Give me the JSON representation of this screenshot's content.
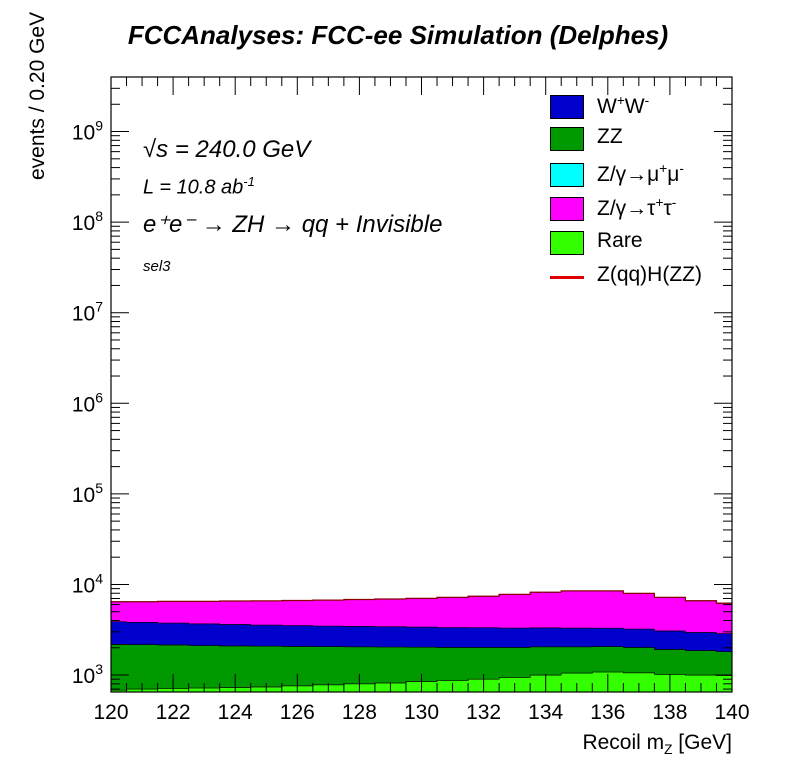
{
  "title": "FCCAnalyses: FCC-ee Simulation (Delphes)",
  "annotations": {
    "sqrt_s_symbol": "√s",
    "sqrt_s_value": "= 240.0 GeV",
    "lumi_prefix": "L = 10.8 ab",
    "lumi_exp": "-1",
    "process": "e⁺e⁻ → ZH → qq + Invisible",
    "selection": "sel3"
  },
  "legend": [
    {
      "key": "ww",
      "label_main": "W",
      "sup1": "+",
      "mid": "W",
      "sup2": "-",
      "color": "#0000cc"
    },
    {
      "key": "zz",
      "label": "ZZ",
      "color": "#009900"
    },
    {
      "key": "zmm",
      "label_main": "Z/γ→μ",
      "sup1": "+",
      "mid": "μ",
      "sup2": "-",
      "color": "#00ffff"
    },
    {
      "key": "ztt",
      "label_main": "Z/γ→τ",
      "sup1": "+",
      "mid": "τ",
      "sup2": "-",
      "color": "#ff00ff"
    },
    {
      "key": "rare",
      "label": "Rare",
      "color": "#33ff00"
    },
    {
      "key": "sig",
      "label": "Z(qq)H(ZZ)",
      "color": "#dd0000",
      "line": true
    }
  ],
  "chart_data": {
    "type": "area",
    "stacked": true,
    "log_y": true,
    "xlabel_main": "Recoil m",
    "xlabel_sub": "Z",
    "xlabel_unit": " [GeV]",
    "ylabel": "events / 0.20 GeV",
    "xlim": [
      120,
      140
    ],
    "ylim": [
      650,
      4000000000
    ],
    "x_ticks": [
      120,
      122,
      124,
      126,
      128,
      130,
      132,
      134,
      136,
      138,
      140
    ],
    "y_ticks": [
      "10³",
      "10⁴",
      "10⁵",
      "10⁶",
      "10⁷",
      "10⁸",
      "10⁹"
    ],
    "y_tick_values": [
      1000,
      10000,
      100000,
      1000000,
      10000000,
      100000000,
      1000000000
    ],
    "x": [
      120,
      121,
      122,
      123,
      124,
      125,
      126,
      127,
      128,
      129,
      130,
      131,
      132,
      133,
      134,
      135,
      136,
      137,
      138,
      139,
      140
    ],
    "series": [
      {
        "name": "Rare",
        "key": "rare",
        "color": "#33ff00",
        "values": [
          680,
          700,
          710,
          720,
          730,
          740,
          760,
          780,
          800,
          820,
          850,
          870,
          900,
          940,
          1000,
          1050,
          1080,
          1060,
          1020,
          1000,
          990
        ]
      },
      {
        "name": "ZZ",
        "key": "zz",
        "color": "#009900",
        "values": [
          1500,
          1470,
          1440,
          1400,
          1370,
          1340,
          1310,
          1280,
          1250,
          1220,
          1180,
          1150,
          1120,
          1080,
          1050,
          1000,
          980,
          960,
          900,
          860,
          820
        ]
      },
      {
        "name": "W⁺W⁻",
        "key": "ww",
        "color": "#0000cc",
        "values": [
          1700,
          1650,
          1600,
          1560,
          1520,
          1480,
          1450,
          1420,
          1400,
          1380,
          1350,
          1330,
          1310,
          1290,
          1270,
          1250,
          1230,
          1200,
          1150,
          1100,
          1060
        ]
      },
      {
        "name": "Z/γ→τ⁺τ⁻",
        "key": "ztt",
        "color": "#ff00ff",
        "values": [
          2550,
          2620,
          2730,
          2810,
          2930,
          3010,
          3120,
          3220,
          3350,
          3480,
          3640,
          3850,
          4070,
          4440,
          4880,
          5200,
          5210,
          4730,
          4130,
          3640,
          3330
        ]
      },
      {
        "name": "Z/γ→μ⁺μ⁻",
        "key": "zmm",
        "color": "#00ffff",
        "values": [
          20,
          20,
          20,
          20,
          20,
          20,
          20,
          20,
          20,
          20,
          20,
          20,
          20,
          20,
          20,
          20,
          20,
          20,
          20,
          20,
          20
        ]
      }
    ],
    "signal": {
      "name": "Z(qq)H(ZZ)",
      "color": "#dd0000",
      "values": [
        2,
        2,
        2,
        2,
        2,
        2,
        2,
        2,
        2,
        2,
        2,
        2,
        2,
        2,
        2,
        2,
        2,
        2,
        2,
        2,
        2
      ]
    }
  }
}
